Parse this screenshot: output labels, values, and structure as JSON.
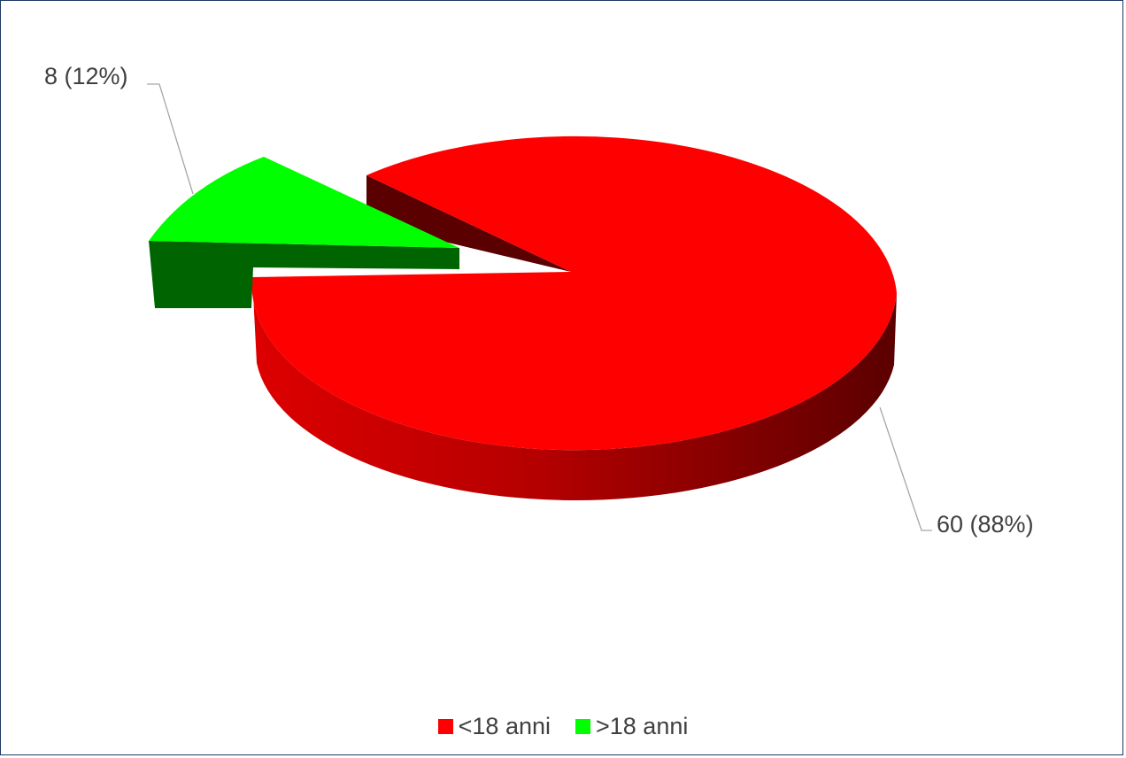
{
  "chart_data": {
    "type": "pie",
    "style": "3d-exploded",
    "categories": [
      "<18 anni",
      ">18 anni"
    ],
    "values": [
      60,
      8
    ],
    "percentages": [
      88,
      12
    ],
    "data_labels": [
      "60 (88%)",
      "8 (12%)"
    ],
    "colors": [
      "#ff0000",
      "#00ff00"
    ],
    "legend_position": "bottom",
    "title": ""
  }
}
